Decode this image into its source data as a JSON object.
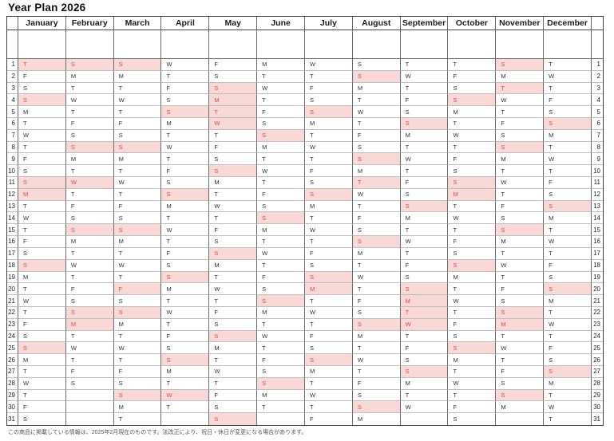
{
  "title": "Year Plan 2026",
  "note": "この商品に掲載している情報は、2025年2月現在のものです。法改正により、祝日・休日が変更になる場合があります。",
  "colors": {
    "highlight_bg": "#f9d8d8",
    "highlight_text": "#d14f4b"
  },
  "row_numbers": [
    1,
    2,
    3,
    4,
    5,
    6,
    7,
    8,
    9,
    10,
    11,
    12,
    13,
    14,
    15,
    16,
    17,
    18,
    19,
    20,
    21,
    22,
    23,
    24,
    25,
    26,
    27,
    28,
    29,
    30,
    31
  ],
  "months": [
    {
      "name": "January",
      "letters": [
        "T",
        "F",
        "S",
        "S",
        "M",
        "T",
        "W",
        "T",
        "F",
        "S",
        "S",
        "M",
        "T",
        "W",
        "T",
        "F",
        "S",
        "S",
        "M",
        "T",
        "W",
        "T",
        "F",
        "S",
        "S",
        "M",
        "T",
        "W",
        "T",
        "F",
        "S"
      ],
      "highlighted": [
        1,
        4,
        11,
        12,
        18,
        25
      ]
    },
    {
      "name": "February",
      "letters": [
        "S",
        "M",
        "T",
        "W",
        "T",
        "F",
        "S",
        "S",
        "M",
        "T",
        "W",
        "T",
        "F",
        "S",
        "S",
        "M",
        "T",
        "W",
        "T",
        "F",
        "S",
        "S",
        "M",
        "T",
        "W",
        "T",
        "F",
        "S",
        "",
        "",
        ""
      ],
      "highlighted": [
        1,
        8,
        11,
        15,
        22,
        23
      ]
    },
    {
      "name": "March",
      "letters": [
        "S",
        "M",
        "T",
        "W",
        "T",
        "F",
        "S",
        "S",
        "M",
        "T",
        "W",
        "T",
        "F",
        "S",
        "S",
        "M",
        "T",
        "W",
        "T",
        "F",
        "S",
        "S",
        "M",
        "T",
        "W",
        "T",
        "F",
        "S",
        "S",
        "M",
        "T"
      ],
      "highlighted": [
        1,
        8,
        15,
        20,
        22,
        29
      ]
    },
    {
      "name": "April",
      "letters": [
        "W",
        "T",
        "F",
        "S",
        "S",
        "M",
        "T",
        "W",
        "T",
        "F",
        "S",
        "S",
        "M",
        "T",
        "W",
        "T",
        "F",
        "S",
        "S",
        "M",
        "T",
        "W",
        "T",
        "F",
        "S",
        "S",
        "M",
        "T",
        "W",
        "T",
        ""
      ],
      "highlighted": [
        5,
        12,
        19,
        26,
        29
      ]
    },
    {
      "name": "May",
      "letters": [
        "F",
        "S",
        "S",
        "M",
        "T",
        "W",
        "T",
        "F",
        "S",
        "S",
        "M",
        "T",
        "W",
        "T",
        "F",
        "S",
        "S",
        "M",
        "T",
        "W",
        "T",
        "F",
        "S",
        "S",
        "M",
        "T",
        "W",
        "T",
        "F",
        "S",
        "S"
      ],
      "highlighted": [
        3,
        4,
        5,
        6,
        10,
        17,
        24,
        31
      ]
    },
    {
      "name": "June",
      "letters": [
        "M",
        "T",
        "W",
        "T",
        "F",
        "S",
        "S",
        "M",
        "T",
        "W",
        "T",
        "F",
        "S",
        "S",
        "M",
        "T",
        "W",
        "T",
        "F",
        "S",
        "S",
        "M",
        "T",
        "W",
        "T",
        "F",
        "S",
        "S",
        "M",
        "T",
        ""
      ],
      "highlighted": [
        7,
        14,
        21,
        28
      ]
    },
    {
      "name": "July",
      "letters": [
        "W",
        "T",
        "F",
        "S",
        "S",
        "M",
        "T",
        "W",
        "T",
        "F",
        "S",
        "S",
        "M",
        "T",
        "W",
        "T",
        "F",
        "S",
        "S",
        "M",
        "T",
        "W",
        "T",
        "F",
        "S",
        "S",
        "M",
        "T",
        "W",
        "T",
        "F"
      ],
      "highlighted": [
        5,
        12,
        19,
        20,
        26
      ]
    },
    {
      "name": "August",
      "letters": [
        "S",
        "S",
        "M",
        "T",
        "W",
        "T",
        "F",
        "S",
        "S",
        "M",
        "T",
        "W",
        "T",
        "F",
        "S",
        "S",
        "M",
        "T",
        "W",
        "T",
        "F",
        "S",
        "S",
        "M",
        "T",
        "W",
        "T",
        "F",
        "S",
        "S",
        "M"
      ],
      "highlighted": [
        2,
        9,
        11,
        16,
        23,
        30
      ]
    },
    {
      "name": "September",
      "letters": [
        "T",
        "W",
        "T",
        "F",
        "S",
        "S",
        "M",
        "T",
        "W",
        "T",
        "F",
        "S",
        "S",
        "M",
        "T",
        "W",
        "T",
        "F",
        "S",
        "S",
        "M",
        "T",
        "W",
        "T",
        "F",
        "S",
        "S",
        "M",
        "T",
        "W",
        ""
      ],
      "highlighted": [
        6,
        13,
        20,
        21,
        22,
        23,
        27
      ]
    },
    {
      "name": "October",
      "letters": [
        "T",
        "F",
        "S",
        "S",
        "M",
        "T",
        "W",
        "T",
        "F",
        "S",
        "S",
        "M",
        "T",
        "W",
        "T",
        "F",
        "S",
        "S",
        "M",
        "T",
        "W",
        "T",
        "F",
        "S",
        "S",
        "M",
        "T",
        "W",
        "T",
        "F",
        "S"
      ],
      "highlighted": [
        4,
        11,
        12,
        18,
        25
      ]
    },
    {
      "name": "November",
      "letters": [
        "S",
        "M",
        "T",
        "W",
        "T",
        "F",
        "S",
        "S",
        "M",
        "T",
        "W",
        "T",
        "F",
        "S",
        "S",
        "M",
        "T",
        "W",
        "T",
        "F",
        "S",
        "S",
        "M",
        "T",
        "W",
        "T",
        "F",
        "S",
        "S",
        "M",
        ""
      ],
      "highlighted": [
        1,
        3,
        8,
        15,
        22,
        23,
        29
      ]
    },
    {
      "name": "December",
      "letters": [
        "T",
        "W",
        "T",
        "F",
        "S",
        "S",
        "M",
        "T",
        "W",
        "T",
        "F",
        "S",
        "S",
        "M",
        "T",
        "W",
        "T",
        "F",
        "S",
        "S",
        "M",
        "T",
        "W",
        "T",
        "F",
        "S",
        "S",
        "M",
        "T",
        "W",
        "T"
      ],
      "highlighted": [
        6,
        13,
        20,
        27
      ]
    }
  ]
}
